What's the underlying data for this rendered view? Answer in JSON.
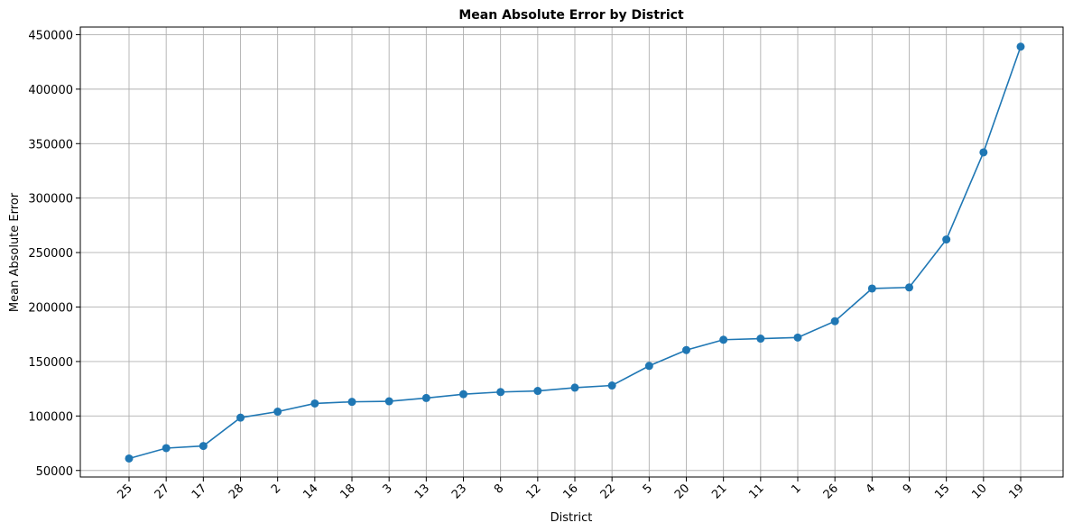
{
  "chart_data": {
    "type": "line",
    "title": "Mean Absolute Error by District",
    "xlabel": "District",
    "ylabel": "Mean Absolute Error",
    "categories": [
      "25",
      "27",
      "17",
      "28",
      "2",
      "14",
      "18",
      "3",
      "13",
      "23",
      "8",
      "12",
      "16",
      "22",
      "5",
      "20",
      "21",
      "11",
      "1",
      "26",
      "4",
      "9",
      "15",
      "10",
      "19"
    ],
    "series": [
      {
        "values": [
          61000,
          70500,
          72500,
          98500,
          104000,
          111500,
          113000,
          113500,
          116500,
          120000,
          122000,
          123000,
          126000,
          128000,
          146000,
          160500,
          170000,
          171000,
          172000,
          187000,
          217000,
          218000,
          262000,
          342000,
          439000
        ],
        "color": "#1f77b4",
        "marker": "circle"
      }
    ],
    "ylim": [
      44000,
      457000
    ],
    "yticks": [
      50000,
      100000,
      150000,
      200000,
      250000,
      300000,
      350000,
      400000,
      450000
    ],
    "grid": true,
    "colors": {
      "line": "#1f77b4",
      "grid": "#b0b0b0",
      "axis": "#000000"
    }
  }
}
